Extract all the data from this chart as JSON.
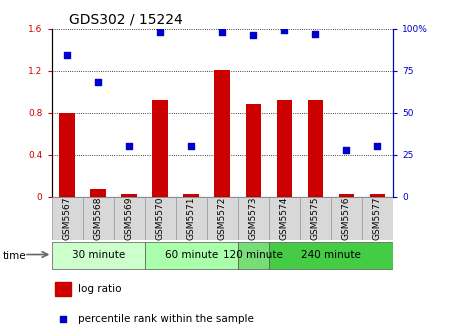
{
  "title": "GDS302 / 15224",
  "samples": [
    "GSM5567",
    "GSM5568",
    "GSM5569",
    "GSM5570",
    "GSM5571",
    "GSM5572",
    "GSM5573",
    "GSM5574",
    "GSM5575",
    "GSM5576",
    "GSM5577"
  ],
  "log_ratio": [
    0.8,
    0.07,
    0.02,
    0.92,
    0.02,
    1.21,
    0.88,
    0.92,
    0.92,
    0.02,
    0.02
  ],
  "percentile_rank": [
    84,
    68,
    30,
    98,
    30,
    98,
    96,
    99,
    97,
    28,
    30
  ],
  "groups": [
    {
      "label": "30 minute",
      "start": 0,
      "end": 2,
      "color": "#ccffcc"
    },
    {
      "label": "60 minute",
      "start": 3,
      "end": 5,
      "color": "#aaffaa"
    },
    {
      "label": "120 minute",
      "start": 6,
      "end": 6,
      "color": "#77dd77"
    },
    {
      "label": "240 minute",
      "start": 7,
      "end": 10,
      "color": "#44cc44"
    }
  ],
  "bar_color": "#cc0000",
  "point_color": "#0000cc",
  "left_ylim": [
    0,
    1.6
  ],
  "right_ylim": [
    0,
    100
  ],
  "left_yticks": [
    0,
    0.4,
    0.8,
    1.2,
    1.6
  ],
  "right_yticks": [
    0,
    25,
    50,
    75,
    100
  ],
  "right_yticklabels": [
    "0",
    "25",
    "50",
    "75",
    "100%"
  ],
  "bar_width": 0.5,
  "bg_color": "#ffffff",
  "title_fontsize": 10,
  "tick_fontsize": 6.5,
  "group_fontsize": 7.5,
  "legend_fontsize": 7.5,
  "legend_bar_label": "log ratio",
  "legend_point_label": "percentile rank within the sample"
}
